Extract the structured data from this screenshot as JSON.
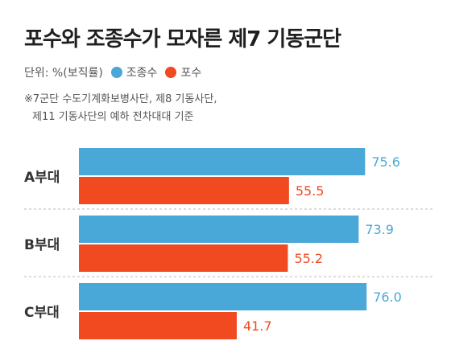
{
  "title": "포수와 조종수가 모자른 제7 기동군단",
  "unit_label": "단위: %(보직률)",
  "note_lines": [
    "※7군단 수도기계화보병사단, 제8 기동사단,",
    "  제11 기동사단의 예하 전차대대 기준"
  ],
  "colors": {
    "driver": "#4aa8d8",
    "gunner": "#f24a20"
  },
  "chart_data": {
    "type": "bar",
    "orientation": "horizontal",
    "title": "포수와 조종수가 모자른 제7 기동군단",
    "categories": [
      "A부대",
      "B부대",
      "C부대"
    ],
    "series": [
      {
        "name": "조종수",
        "color": "#4aa8d8",
        "values": [
          75.6,
          73.9,
          76.0
        ]
      },
      {
        "name": "포수",
        "color": "#f24a20",
        "values": [
          55.5,
          55.2,
          41.7
        ]
      }
    ],
    "value_labels": [
      [
        "75.6",
        "73.9",
        "76.0"
      ],
      [
        "55.5",
        "55.2",
        "41.7"
      ]
    ],
    "xlim": [
      0,
      100
    ],
    "grid": false,
    "legend_position": "top-left"
  }
}
